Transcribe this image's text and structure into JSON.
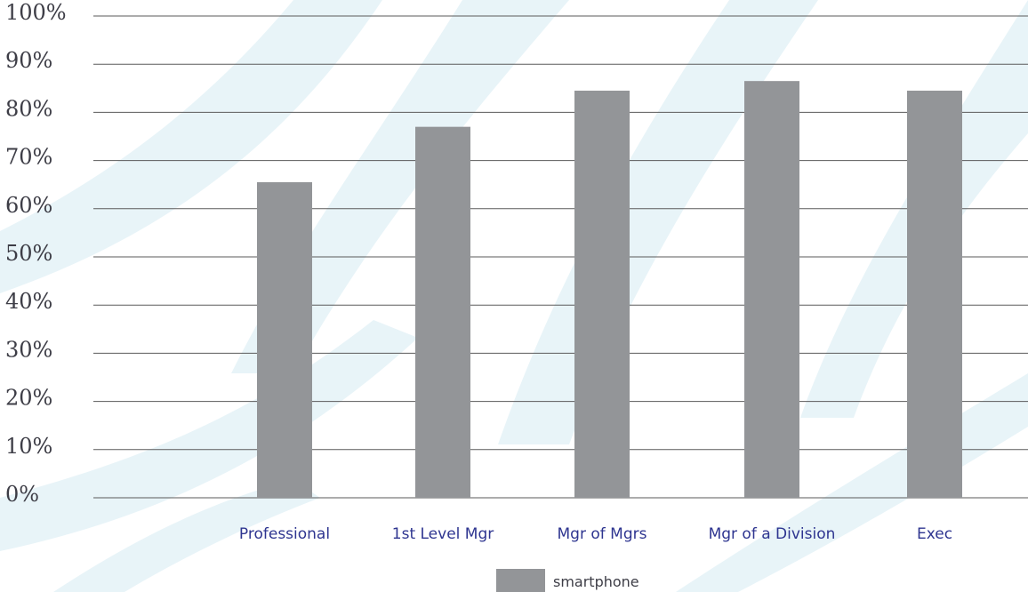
{
  "colors": {
    "bar": "#939598",
    "background_swoosh": "#e8f4f8",
    "x_label": "#2e3590",
    "y_label": "#3d3d46"
  },
  "chart_data": {
    "type": "bar",
    "title": "",
    "xlabel": "",
    "ylabel": "",
    "categories": [
      "Professional",
      "1st Level Mgr",
      "Mgr of Mgrs",
      "Mgr of a Division",
      "Exec"
    ],
    "series": [
      {
        "name": "smartphone",
        "values": [
          65.5,
          77,
          84.5,
          86.5,
          84.5
        ]
      }
    ],
    "ylim": [
      0,
      100
    ],
    "yticks": [
      "0%",
      "10%",
      "20%",
      "30%",
      "40%",
      "50%",
      "60%",
      "70%",
      "80%",
      "90%",
      "100%"
    ],
    "grid": true,
    "legend_position": "bottom-center"
  }
}
